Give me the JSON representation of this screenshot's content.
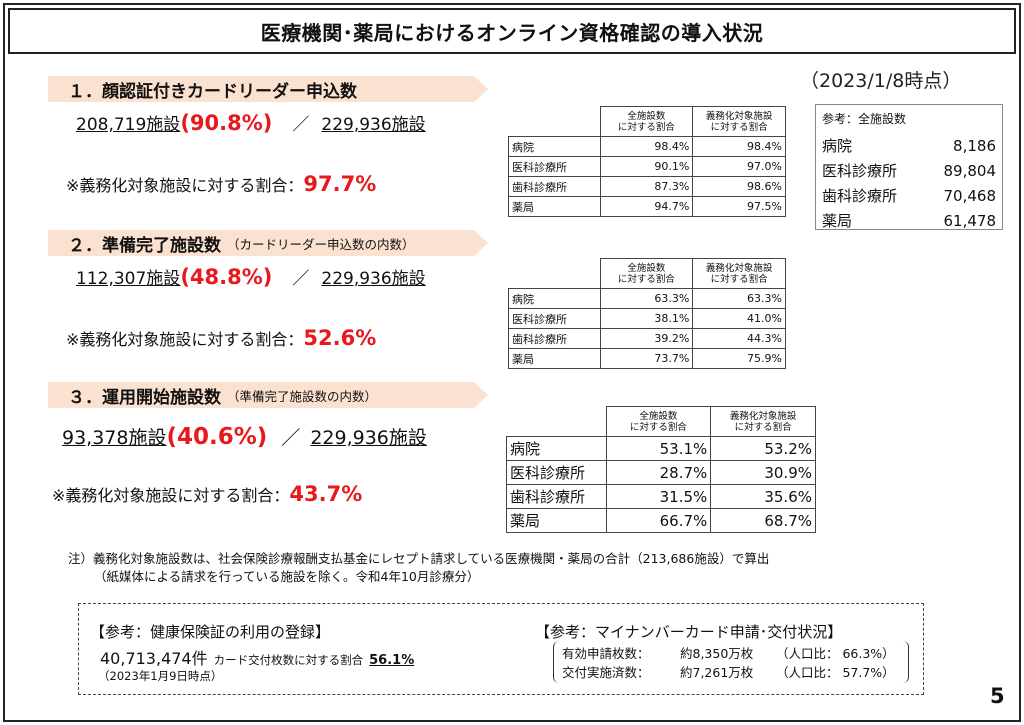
{
  "title": "医療機関･薬局におけるオンライン資格確認の導入状況",
  "as_of": "（2023/1/8時点）",
  "sections": [
    {
      "header": "１．顔認証付きカードリーダー申込数",
      "header_sub": "",
      "count": "208,719施設",
      "pct": "(90.8%)",
      "slash": "／",
      "total": "229,936施設",
      "ratio_label": "※義務化対象施設に対する割合：",
      "ratio_value": "97.7%"
    },
    {
      "header": "２．準備完了施設数",
      "header_sub": "（カードリーダー申込数の内数）",
      "count": "112,307施設",
      "pct": "(48.8%)",
      "slash": "／",
      "total": "229,936施設",
      "ratio_label": "※義務化対象施設に対する割合：",
      "ratio_value": "52.6%"
    },
    {
      "header": "３．運用開始施設数",
      "header_sub": "（準備完了施設数の内数）",
      "count": "93,378施設",
      "pct": "(40.6%)",
      "slash": "／",
      "total": "229,936施設",
      "ratio_label": "※義務化対象施設に対する割合：",
      "ratio_value": "43.7%"
    }
  ],
  "table_headers": {
    "col1_line1": "全施設数",
    "col1_line2": "に対する割合",
    "col2_line1": "義務化対象施設",
    "col2_line2": "に対する割合"
  },
  "tables": [
    {
      "rows": [
        {
          "label": "病院",
          "all": "98.4%",
          "mandatory": "98.4%"
        },
        {
          "label": "医科診療所",
          "all": "90.1%",
          "mandatory": "97.0%"
        },
        {
          "label": "歯科診療所",
          "all": "87.3%",
          "mandatory": "98.6%"
        },
        {
          "label": "薬局",
          "all": "94.7%",
          "mandatory": "97.5%"
        }
      ]
    },
    {
      "rows": [
        {
          "label": "病院",
          "all": "63.3%",
          "mandatory": "63.3%"
        },
        {
          "label": "医科診療所",
          "all": "38.1%",
          "mandatory": "41.0%"
        },
        {
          "label": "歯科診療所",
          "all": "39.2%",
          "mandatory": "44.3%"
        },
        {
          "label": "薬局",
          "all": "73.7%",
          "mandatory": "75.9%"
        }
      ]
    },
    {
      "rows": [
        {
          "label": "病院",
          "all": "53.1%",
          "mandatory": "53.2%"
        },
        {
          "label": "医科診療所",
          "all": "28.7%",
          "mandatory": "30.9%"
        },
        {
          "label": "歯科診療所",
          "all": "31.5%",
          "mandatory": "35.6%"
        },
        {
          "label": "薬局",
          "all": "66.7%",
          "mandatory": "68.7%"
        }
      ]
    }
  ],
  "reference_totals": {
    "heading": "参考：全施設数",
    "rows": [
      {
        "label": "病院",
        "value": "8,186"
      },
      {
        "label": "医科診療所",
        "value": "89,804"
      },
      {
        "label": "歯科診療所",
        "value": "70,468"
      },
      {
        "label": "薬局",
        "value": "61,478"
      }
    ]
  },
  "note": {
    "line1": "注）義務化対象施設数は、社会保険診療報酬支払基金にレセプト請求している医療機関・薬局の合計（213,686施設）で算出",
    "line2": "（紙媒体による請求を行っている施設を除く。令和4年10月診療分）"
  },
  "ref_insurance": {
    "title": "【参考：健康保険証の利用の登録】",
    "count": "40,713,474件",
    "label": "カード交付枚数に対する割合",
    "pct": "56.1%",
    "date": "（2023年1月9日時点）"
  },
  "ref_mynumber": {
    "title": "【参考：マイナンバーカード申請･交付状況】",
    "rows": [
      {
        "label": "有効申請枚数：",
        "value": "約8,350万枚",
        "ratio": "（人口比： 66.3%）"
      },
      {
        "label": "交付実施済数：",
        "value": "約7,261万枚",
        "ratio": "（人口比： 57.7%）"
      }
    ]
  },
  "page_number": "5",
  "colors": {
    "accent_red": "#e8191c",
    "header_fill": "#fbe1cf",
    "header_edge": "#e7a97c"
  }
}
